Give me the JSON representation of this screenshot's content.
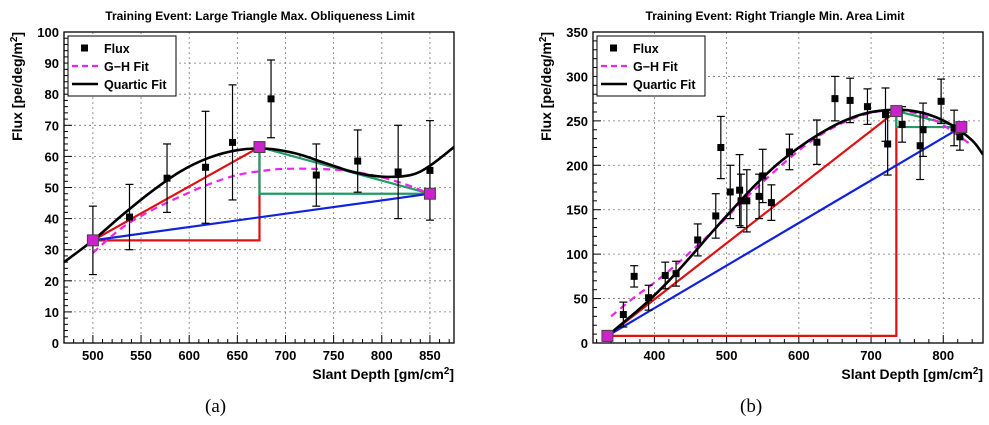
{
  "figure": {
    "captions": [
      "(a)",
      "(b)"
    ]
  },
  "chart_data": [
    {
      "type": "scatter",
      "title": "Training Event: Large Triangle Max. Obliqueness Limit",
      "xlabel": "Slant Depth  [gm/cm²]",
      "ylabel": "Flux  [pe/deg/m²]",
      "xlim": [
        470,
        875
      ],
      "ylim": [
        0,
        100
      ],
      "xticks": [
        500,
        550,
        600,
        650,
        700,
        750,
        800,
        850
      ],
      "yticks": [
        0,
        10,
        20,
        30,
        40,
        50,
        60,
        70,
        80,
        90,
        100
      ],
      "grid": true,
      "legend_position": "top-left",
      "series": [
        {
          "name": "Flux",
          "kind": "points-with-errorbars",
          "color": "#000000",
          "x": [
            500,
            538,
            577,
            617,
            645,
            685,
            732,
            775,
            817,
            850
          ],
          "y": [
            33,
            40.5,
            53,
            56.5,
            64.5,
            78.5,
            54,
            58.5,
            55,
            55.5
          ],
          "yerr": [
            11,
            10.5,
            11,
            18,
            18.5,
            12.5,
            10,
            10,
            15,
            16
          ]
        },
        {
          "name": "G−H Fit",
          "kind": "dashed-line",
          "color": "#ee22ee",
          "x": [
            500,
            530,
            560,
            590,
            620,
            650,
            680,
            700,
            730,
            760,
            790,
            820,
            850
          ],
          "y": [
            29,
            37,
            42.5,
            47,
            51,
            54,
            55.5,
            56,
            56,
            55.5,
            54,
            51.5,
            48
          ]
        },
        {
          "name": "Quartic Fit",
          "kind": "line",
          "color": "#000000",
          "x": [
            470,
            500,
            530,
            560,
            590,
            620,
            650,
            680,
            710,
            740,
            770,
            800,
            830,
            850,
            875
          ],
          "y": [
            26,
            33,
            41,
            48.5,
            55,
            59.5,
            62,
            62.5,
            61,
            58,
            55,
            53.5,
            54,
            57,
            63
          ]
        }
      ],
      "triangle_points": [
        {
          "x": 500,
          "y": 33
        },
        {
          "x": 673,
          "y": 63
        },
        {
          "x": 850,
          "y": 48
        }
      ],
      "markers": {
        "color": "#cc22cc"
      },
      "lines": {
        "red": "#dd1111",
        "green": "#229966",
        "blue": "#1122dd"
      }
    },
    {
      "type": "scatter",
      "title": "Training Event: Right Triangle Min. Area Limit",
      "xlabel": "Slant Depth  [gm/cm²]",
      "ylabel": "Flux  [pe/deg/m²]",
      "xlim": [
        315,
        855
      ],
      "ylim": [
        0,
        350
      ],
      "xticks": [
        400,
        500,
        600,
        700,
        800
      ],
      "yticks": [
        0,
        50,
        100,
        150,
        200,
        250,
        300,
        350
      ],
      "grid": true,
      "legend_position": "top-left",
      "series": [
        {
          "name": "Flux",
          "kind": "points-with-errorbars",
          "color": "#000000",
          "x": [
            335,
            357,
            372,
            392,
            415,
            430,
            460,
            485,
            492,
            505,
            518,
            520,
            528,
            545,
            550,
            562,
            587,
            625,
            650,
            671,
            695,
            720,
            723,
            743,
            768,
            772,
            797,
            815,
            823
          ],
          "y": [
            8,
            32,
            75,
            51,
            76,
            78,
            116,
            143,
            220,
            170,
            172,
            160,
            160,
            165,
            188,
            158,
            215,
            226,
            275,
            273,
            266,
            257,
            224,
            246,
            222,
            240,
            272,
            242,
            232
          ],
          "yerr": [
            6,
            14,
            12,
            14,
            15,
            14,
            18,
            25,
            35,
            30,
            40,
            30,
            35,
            25,
            30,
            20,
            20,
            25,
            25,
            25,
            20,
            30,
            35,
            20,
            38,
            30,
            25,
            20,
            15
          ]
        },
        {
          "name": "G−H Fit",
          "kind": "dashed-line",
          "color": "#ee22ee",
          "x": [
            340,
            370,
            400,
            430,
            460,
            490,
            520,
            550,
            580,
            610,
            640,
            670,
            700,
            730,
            760,
            790,
            820,
            840
          ],
          "y": [
            30,
            50,
            68,
            88,
            110,
            133,
            158,
            181,
            203,
            223,
            239,
            251,
            259,
            262,
            259,
            250,
            234,
            222
          ]
        },
        {
          "name": "Quartic Fit",
          "kind": "line",
          "color": "#000000",
          "x": [
            335,
            360,
            390,
            420,
            450,
            480,
            510,
            540,
            570,
            600,
            630,
            660,
            690,
            720,
            750,
            780,
            810,
            840,
            855
          ],
          "y": [
            8,
            25,
            46,
            70,
            97,
            125,
            152,
            178,
            201,
            220,
            236,
            249,
            258,
            262,
            262,
            257,
            246,
            228,
            212
          ]
        }
      ],
      "triangle_points": [
        {
          "x": 335,
          "y": 8
        },
        {
          "x": 735,
          "y": 261
        },
        {
          "x": 825,
          "y": 243
        }
      ],
      "markers": {
        "color": "#cc22cc"
      },
      "lines": {
        "red": "#dd1111",
        "green": "#229966",
        "blue": "#1122dd"
      }
    }
  ]
}
